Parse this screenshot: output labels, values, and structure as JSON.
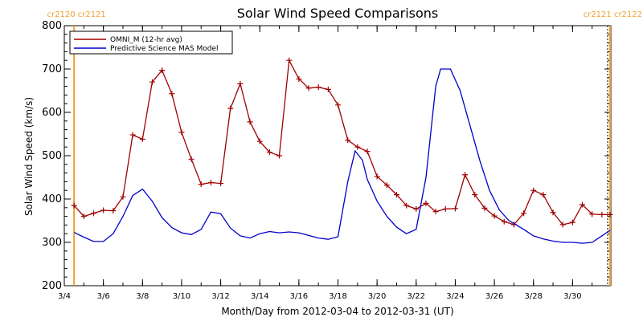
{
  "chart_data": {
    "type": "line",
    "title": "Solar Wind Speed Comparisons",
    "xlabel": "Month/Day from 2012-03-04 to 2012-03-31 (UT)",
    "ylabel": "Solar Wind Speed (km/s)",
    "xlim": [
      "2012-03-04",
      "2012-03-31T23:00"
    ],
    "ylim": [
      200,
      800
    ],
    "x_tick_labels": [
      "3/4",
      "3/6",
      "3/8",
      "3/10",
      "3/12",
      "3/14",
      "3/16",
      "3/18",
      "3/20",
      "3/22",
      "3/24",
      "3/26",
      "3/28",
      "3/30"
    ],
    "x_tick_dates": [
      "2012-03-04",
      "2012-03-06",
      "2012-03-08",
      "2012-03-10",
      "2012-03-12",
      "2012-03-14",
      "2012-03-16",
      "2012-03-18",
      "2012-03-20",
      "2012-03-22",
      "2012-03-24",
      "2012-03-26",
      "2012-03-28",
      "2012-03-30"
    ],
    "y_ticks": [
      200,
      300,
      400,
      500,
      600,
      700,
      800
    ],
    "legend_position": "top-left",
    "carrington_markers": [
      {
        "date": "2012-03-04T12:00",
        "labels": [
          "cr2120",
          "cr2121"
        ],
        "color": "#f0a030"
      },
      {
        "date": "2012-03-31T22:00",
        "labels": [
          "cr2121",
          "cr2122"
        ],
        "color": "#f0a030"
      }
    ],
    "series": [
      {
        "name": "OMNI_M (12-hr avg)",
        "color": "#a00000",
        "markers": true,
        "points": [
          [
            "2012-03-04T12:00",
            385
          ],
          [
            "2012-03-05T00:00",
            360
          ],
          [
            "2012-03-05T12:00",
            367
          ],
          [
            "2012-03-06T00:00",
            374
          ],
          [
            "2012-03-06T12:00",
            373
          ],
          [
            "2012-03-07T00:00",
            405
          ],
          [
            "2012-03-07T12:00",
            548
          ],
          [
            "2012-03-08T00:00",
            538
          ],
          [
            "2012-03-08T12:00",
            670
          ],
          [
            "2012-03-09T00:00",
            697
          ],
          [
            "2012-03-09T12:00",
            643
          ],
          [
            "2012-03-10T00:00",
            554
          ],
          [
            "2012-03-10T12:00",
            492
          ],
          [
            "2012-03-11T00:00",
            434
          ],
          [
            "2012-03-11T12:00",
            438
          ],
          [
            "2012-03-12T00:00",
            436
          ],
          [
            "2012-03-12T12:00",
            609
          ],
          [
            "2012-03-13T00:00",
            666
          ],
          [
            "2012-03-13T12:00",
            578
          ],
          [
            "2012-03-14T00:00",
            533
          ],
          [
            "2012-03-14T12:00",
            508
          ],
          [
            "2012-03-15T00:00",
            500
          ],
          [
            "2012-03-15T12:00",
            720
          ],
          [
            "2012-03-16T00:00",
            677
          ],
          [
            "2012-03-16T12:00",
            656
          ],
          [
            "2012-03-17T00:00",
            658
          ],
          [
            "2012-03-17T12:00",
            653
          ],
          [
            "2012-03-18T00:00",
            617
          ],
          [
            "2012-03-18T12:00",
            536
          ],
          [
            "2012-03-19T00:00",
            520
          ],
          [
            "2012-03-19T12:00",
            510
          ],
          [
            "2012-03-20T00:00",
            452
          ],
          [
            "2012-03-20T12:00",
            432
          ],
          [
            "2012-03-21T00:00",
            410
          ],
          [
            "2012-03-21T12:00",
            385
          ],
          [
            "2012-03-22T00:00",
            377
          ],
          [
            "2012-03-22T12:00",
            390
          ],
          [
            "2012-03-23T00:00",
            371
          ],
          [
            "2012-03-23T12:00",
            377
          ],
          [
            "2012-03-24T00:00",
            378
          ],
          [
            "2012-03-24T12:00",
            456
          ],
          [
            "2012-03-25T00:00",
            410
          ],
          [
            "2012-03-25T12:00",
            379
          ],
          [
            "2012-03-26T00:00",
            361
          ],
          [
            "2012-03-26T12:00",
            348
          ],
          [
            "2012-03-27T00:00",
            341
          ],
          [
            "2012-03-27T12:00",
            367
          ],
          [
            "2012-03-28T00:00",
            420
          ],
          [
            "2012-03-28T12:00",
            410
          ],
          [
            "2012-03-29T00:00",
            369
          ],
          [
            "2012-03-29T12:00",
            341
          ],
          [
            "2012-03-30T00:00",
            346
          ],
          [
            "2012-03-30T12:00",
            387
          ],
          [
            "2012-03-31T00:00",
            365
          ],
          [
            "2012-03-31T12:00",
            364
          ],
          [
            "2012-03-31T22:00",
            364
          ]
        ]
      },
      {
        "name": "Predictive Science MAS Model",
        "color": "#0000cc",
        "markers": false,
        "points": [
          [
            "2012-03-04T12:00",
            323
          ],
          [
            "2012-03-05T00:00",
            312
          ],
          [
            "2012-03-05T12:00",
            302
          ],
          [
            "2012-03-06T00:00",
            302
          ],
          [
            "2012-03-06T12:00",
            320
          ],
          [
            "2012-03-07T00:00",
            360
          ],
          [
            "2012-03-07T12:00",
            408
          ],
          [
            "2012-03-08T00:00",
            423
          ],
          [
            "2012-03-08T12:00",
            395
          ],
          [
            "2012-03-09T00:00",
            357
          ],
          [
            "2012-03-09T12:00",
            334
          ],
          [
            "2012-03-10T00:00",
            322
          ],
          [
            "2012-03-10T12:00",
            318
          ],
          [
            "2012-03-11T00:00",
            330
          ],
          [
            "2012-03-11T12:00",
            370
          ],
          [
            "2012-03-12T00:00",
            366
          ],
          [
            "2012-03-12T12:00",
            333
          ],
          [
            "2012-03-13T00:00",
            315
          ],
          [
            "2012-03-13T12:00",
            310
          ],
          [
            "2012-03-14T00:00",
            320
          ],
          [
            "2012-03-14T12:00",
            325
          ],
          [
            "2012-03-15T00:00",
            322
          ],
          [
            "2012-03-15T12:00",
            324
          ],
          [
            "2012-03-16T00:00",
            322
          ],
          [
            "2012-03-16T12:00",
            316
          ],
          [
            "2012-03-17T00:00",
            310
          ],
          [
            "2012-03-17T12:00",
            307
          ],
          [
            "2012-03-18T00:00",
            313
          ],
          [
            "2012-03-18T12:00",
            440
          ],
          [
            "2012-03-18T21:00",
            511
          ],
          [
            "2012-03-19T06:00",
            490
          ],
          [
            "2012-03-19T12:00",
            445
          ],
          [
            "2012-03-20T00:00",
            395
          ],
          [
            "2012-03-20T12:00",
            360
          ],
          [
            "2012-03-21T00:00",
            335
          ],
          [
            "2012-03-21T12:00",
            320
          ],
          [
            "2012-03-22T00:00",
            330
          ],
          [
            "2012-03-22T12:00",
            450
          ],
          [
            "2012-03-23T00:00",
            660
          ],
          [
            "2012-03-23T06:00",
            700
          ],
          [
            "2012-03-23T18:00",
            700
          ],
          [
            "2012-03-24T06:00",
            650
          ],
          [
            "2012-03-24T18:00",
            570
          ],
          [
            "2012-03-25T06:00",
            490
          ],
          [
            "2012-03-25T18:00",
            420
          ],
          [
            "2012-03-26T06:00",
            375
          ],
          [
            "2012-03-26T18:00",
            350
          ],
          [
            "2012-03-27T12:00",
            330
          ],
          [
            "2012-03-28T00:00",
            315
          ],
          [
            "2012-03-28T12:00",
            308
          ],
          [
            "2012-03-29T00:00",
            303
          ],
          [
            "2012-03-29T12:00",
            300
          ],
          [
            "2012-03-30T00:00",
            300
          ],
          [
            "2012-03-30T12:00",
            298
          ],
          [
            "2012-03-31T00:00",
            300
          ],
          [
            "2012-03-31T12:00",
            315
          ],
          [
            "2012-03-31T22:00",
            328
          ]
        ]
      }
    ]
  }
}
